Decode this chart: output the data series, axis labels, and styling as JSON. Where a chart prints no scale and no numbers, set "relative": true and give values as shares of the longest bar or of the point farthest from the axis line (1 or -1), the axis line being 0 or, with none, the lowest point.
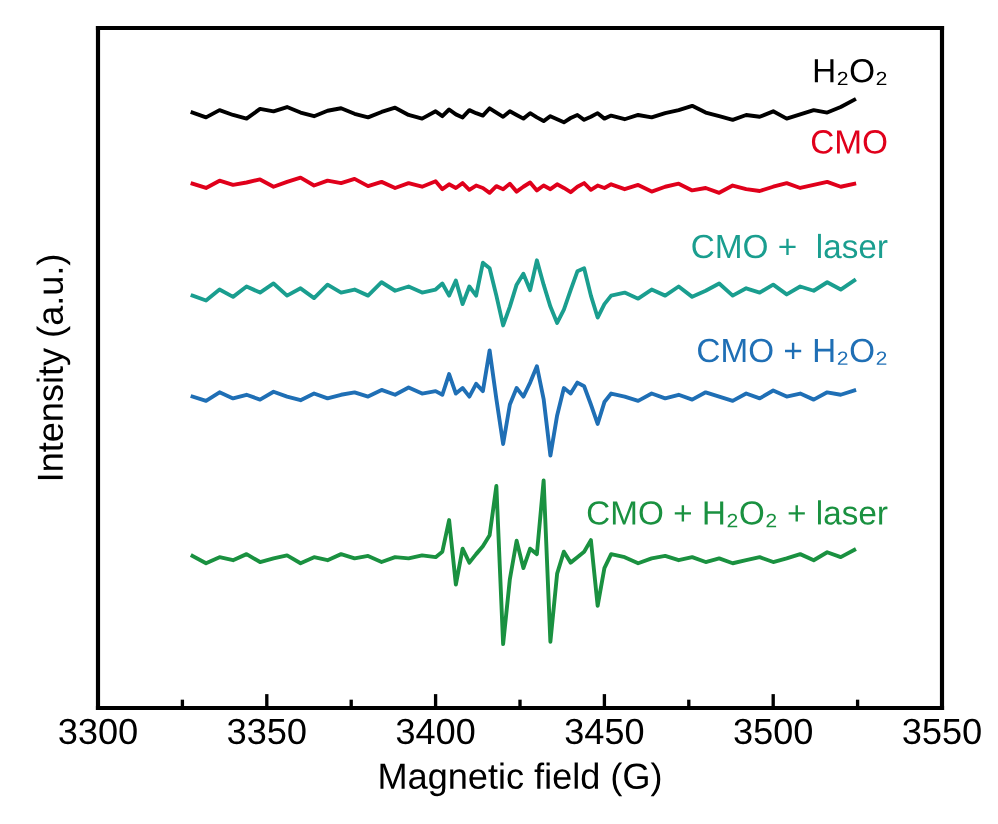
{
  "chart_data": {
    "type": "line",
    "relative": true,
    "xlabel": "Magnetic field (G)",
    "ylabel": "Intensity (a.u.)",
    "xlim": [
      3300,
      3550
    ],
    "xticks": [
      3300,
      3350,
      3400,
      3450,
      3500,
      3550
    ],
    "tick_labels": "x",
    "grid": false,
    "legend": false,
    "marker": "none",
    "line_style": "solid",
    "x": [
      3328,
      3332,
      3336,
      3340,
      3344,
      3348,
      3352,
      3356,
      3360,
      3364,
      3368,
      3372,
      3376,
      3380,
      3384,
      3388,
      3392,
      3396,
      3400,
      3402,
      3404,
      3406,
      3408,
      3410,
      3412,
      3414,
      3416,
      3418,
      3420,
      3422,
      3424,
      3426,
      3428,
      3430,
      3432,
      3434,
      3436,
      3438,
      3440,
      3442,
      3444,
      3446,
      3448,
      3450,
      3452,
      3456,
      3460,
      3464,
      3468,
      3472,
      3476,
      3480,
      3484,
      3488,
      3492,
      3496,
      3500,
      3504,
      3508,
      3512,
      3516,
      3520,
      3524
    ],
    "series": [
      {
        "name": "H₂O₂",
        "color": "#000000",
        "values": [
          0.979,
          0.971,
          0.983,
          0.975,
          0.969,
          0.985,
          0.981,
          0.988,
          0.979,
          0.973,
          0.982,
          0.986,
          0.977,
          0.971,
          0.98,
          0.987,
          0.975,
          0.969,
          0.981,
          0.973,
          0.984,
          0.976,
          0.971,
          0.983,
          0.978,
          0.974,
          0.986,
          0.979,
          0.972,
          0.981,
          0.975,
          0.969,
          0.978,
          0.971,
          0.965,
          0.973,
          0.968,
          0.963,
          0.97,
          0.975,
          0.967,
          0.972,
          0.978,
          0.969,
          0.974,
          0.968,
          0.975,
          0.971,
          0.978,
          0.983,
          0.99,
          0.979,
          0.973,
          0.967,
          0.975,
          0.972,
          0.981,
          0.969,
          0.976,
          0.983,
          0.979,
          0.988,
          1.0
        ]
      },
      {
        "name": "CMO",
        "color": "#e0001b",
        "values": [
          0.862,
          0.855,
          0.867,
          0.86,
          0.864,
          0.869,
          0.857,
          0.865,
          0.872,
          0.859,
          0.867,
          0.863,
          0.87,
          0.858,
          0.865,
          0.855,
          0.863,
          0.857,
          0.866,
          0.853,
          0.861,
          0.855,
          0.863,
          0.852,
          0.859,
          0.855,
          0.847,
          0.858,
          0.853,
          0.862,
          0.849,
          0.857,
          0.864,
          0.851,
          0.859,
          0.853,
          0.861,
          0.855,
          0.848,
          0.857,
          0.863,
          0.852,
          0.859,
          0.855,
          0.861,
          0.853,
          0.86,
          0.849,
          0.857,
          0.862,
          0.851,
          0.855,
          0.847,
          0.859,
          0.853,
          0.85,
          0.857,
          0.863,
          0.855,
          0.86,
          0.865,
          0.857,
          0.862
        ]
      },
      {
        "name": "CMO +  laser",
        "color": "#1a9e8f",
        "values": [
          0.678,
          0.67,
          0.688,
          0.676,
          0.693,
          0.683,
          0.698,
          0.678,
          0.69,
          0.674,
          0.696,
          0.683,
          0.688,
          0.678,
          0.7,
          0.686,
          0.693,
          0.683,
          0.688,
          0.698,
          0.678,
          0.703,
          0.664,
          0.693,
          0.678,
          0.732,
          0.723,
          0.678,
          0.629,
          0.66,
          0.696,
          0.714,
          0.687,
          0.736,
          0.696,
          0.66,
          0.633,
          0.655,
          0.687,
          0.718,
          0.723,
          0.678,
          0.642,
          0.664,
          0.678,
          0.683,
          0.673,
          0.688,
          0.678,
          0.693,
          0.676,
          0.686,
          0.698,
          0.678,
          0.69,
          0.683,
          0.696,
          0.68,
          0.693,
          0.686,
          0.7,
          0.688,
          0.703
        ]
      },
      {
        "name": "CMO + H₂O₂",
        "color": "#1f6fb5",
        "values": [
          0.512,
          0.505,
          0.519,
          0.509,
          0.515,
          0.507,
          0.52,
          0.512,
          0.506,
          0.517,
          0.509,
          0.515,
          0.519,
          0.512,
          0.523,
          0.515,
          0.527,
          0.517,
          0.521,
          0.515,
          0.549,
          0.517,
          0.526,
          0.512,
          0.533,
          0.521,
          0.588,
          0.508,
          0.434,
          0.499,
          0.526,
          0.512,
          0.535,
          0.562,
          0.508,
          0.415,
          0.481,
          0.526,
          0.517,
          0.535,
          0.529,
          0.499,
          0.467,
          0.503,
          0.517,
          0.512,
          0.505,
          0.517,
          0.509,
          0.515,
          0.507,
          0.519,
          0.512,
          0.505,
          0.517,
          0.509,
          0.522,
          0.512,
          0.517,
          0.507,
          0.519,
          0.515,
          0.522
        ]
      },
      {
        "name": "CMO + H₂O₂ + laser",
        "color": "#1a9140",
        "values": [
          0.25,
          0.238,
          0.248,
          0.243,
          0.253,
          0.24,
          0.246,
          0.251,
          0.238,
          0.248,
          0.243,
          0.253,
          0.246,
          0.25,
          0.24,
          0.248,
          0.246,
          0.251,
          0.248,
          0.257,
          0.309,
          0.203,
          0.262,
          0.239,
          0.253,
          0.266,
          0.284,
          0.365,
          0.105,
          0.212,
          0.275,
          0.23,
          0.262,
          0.253,
          0.374,
          0.109,
          0.221,
          0.257,
          0.239,
          0.248,
          0.257,
          0.276,
          0.168,
          0.23,
          0.253,
          0.248,
          0.238,
          0.246,
          0.25,
          0.243,
          0.248,
          0.24,
          0.246,
          0.238,
          0.243,
          0.248,
          0.24,
          0.246,
          0.253,
          0.243,
          0.256,
          0.248,
          0.26
        ]
      }
    ]
  }
}
